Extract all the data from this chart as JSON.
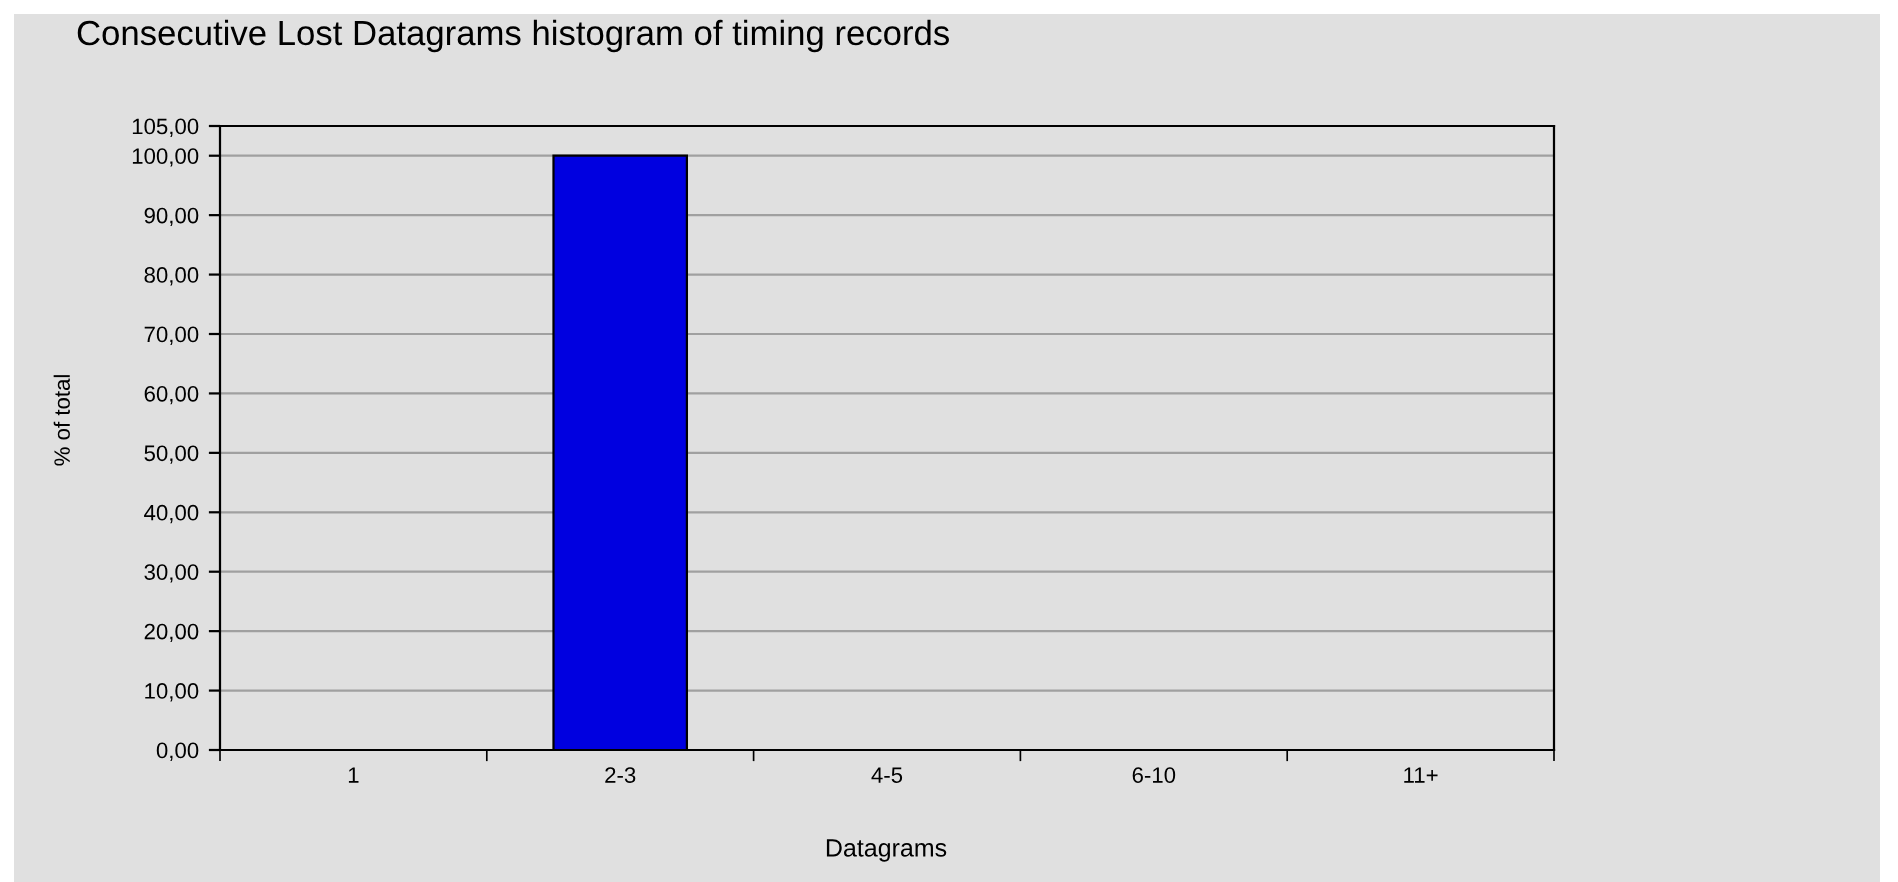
{
  "chart_data": {
    "type": "bar",
    "title": "Consecutive Lost Datagrams histogram of timing records",
    "xlabel": "Datagrams",
    "ylabel": "% of total",
    "categories": [
      "1",
      "2-3",
      "4-5",
      "6-10",
      "11+"
    ],
    "values": [
      0,
      100,
      0,
      0,
      0
    ],
    "color": "#0000e0",
    "ylim": [
      0,
      105
    ],
    "yticks": [
      {
        "value": 0,
        "label": "0,00"
      },
      {
        "value": 10,
        "label": "10,00"
      },
      {
        "value": 20,
        "label": "20,00"
      },
      {
        "value": 30,
        "label": "30,00"
      },
      {
        "value": 40,
        "label": "40,00"
      },
      {
        "value": 50,
        "label": "50,00"
      },
      {
        "value": 60,
        "label": "60,00"
      },
      {
        "value": 70,
        "label": "70,00"
      },
      {
        "value": 80,
        "label": "80,00"
      },
      {
        "value": 90,
        "label": "90,00"
      },
      {
        "value": 100,
        "label": "100,00"
      },
      {
        "value": 105,
        "label": "105,00"
      }
    ],
    "grid": "y",
    "legend": false
  }
}
